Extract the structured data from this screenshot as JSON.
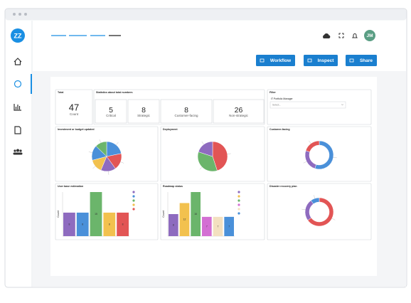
{
  "sidebar": {
    "logo": "ZZ"
  },
  "header": {
    "avatar": "JM"
  },
  "buttons": [
    "Workflow",
    "Inspect",
    "Share"
  ],
  "total": {
    "title": "Total",
    "value": 47,
    "label": "Count"
  },
  "summary": {
    "title": "Statistics about total numbers",
    "cards": [
      {
        "value": 5,
        "label": "Critical"
      },
      {
        "value": 8,
        "label": "Strategic"
      },
      {
        "value": 8,
        "label": "Customer-facing"
      },
      {
        "value": 26,
        "label": "Non-strategic"
      }
    ]
  },
  "filter": {
    "title": "Filter",
    "field": "IT Portfolio Manager",
    "placeholder": "Select..."
  },
  "charts": [
    {
      "type": "pie",
      "title": "Investment or budget updated",
      "values": [
        12,
        10,
        9,
        8,
        9,
        7
      ],
      "colors": [
        "#4a90d9",
        "#e25555",
        "#8e6bbf",
        "#f2c14e",
        "#4a90d9",
        "#6bb56b"
      ]
    },
    {
      "type": "pie",
      "title": "Deployment",
      "values": [
        45,
        35,
        20
      ],
      "colors": [
        "#e25555",
        "#6bb56b",
        "#8e6bbf"
      ]
    },
    {
      "type": "donut",
      "title": "Customer-facing",
      "values": [
        55,
        25,
        20
      ],
      "colors": [
        "#4a90d9",
        "#8e6bbf",
        "#e25555"
      ]
    },
    {
      "type": "bar",
      "title": "User base estimation",
      "axis_label": "Count",
      "values": [
        8,
        8,
        15,
        8,
        8
      ],
      "colors": [
        "#8e6bbf",
        "#4a90d9",
        "#6bb56b",
        "#f2c14e",
        "#e25555"
      ]
    },
    {
      "type": "bar",
      "title": "Roadmap status",
      "axis_label": "Count",
      "values": [
        8,
        12,
        16,
        7,
        7,
        7
      ],
      "colors": [
        "#8e6bbf",
        "#f2c14e",
        "#6bb56b",
        "#d36fd3",
        "#f3e0c0",
        "#4a90d9"
      ]
    },
    {
      "type": "donut",
      "title": "Disaster recovery plan",
      "values": [
        65,
        25,
        10
      ],
      "colors": [
        "#e25555",
        "#8e6bbf",
        "#4a90d9"
      ]
    }
  ]
}
